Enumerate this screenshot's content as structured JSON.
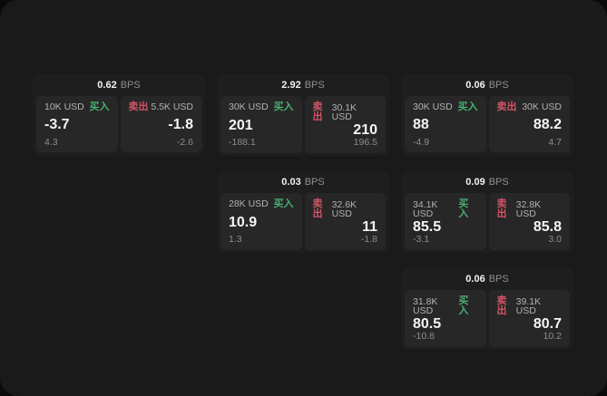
{
  "labels": {
    "buy": "买入",
    "sell": "卖出",
    "bps_unit": "BPS"
  },
  "colors": {
    "buy": "#4cae70",
    "sell": "#d25566",
    "page_background": "#1a1a1b",
    "outer_background": "#0a0a0b",
    "card_background": "#1e1e1f",
    "panel_background": "#272728"
  },
  "cards": [
    {
      "bps": "0.62",
      "buy": {
        "size": "10K USD",
        "value": "-3.7",
        "change": "4.3"
      },
      "sell": {
        "size": "5.5K USD",
        "value": "-1.8",
        "change": "-2.6"
      }
    },
    {
      "bps": "2.92",
      "buy": {
        "size": "30K USD",
        "value": "201",
        "change": "-188.1"
      },
      "sell": {
        "size": "30.1K USD",
        "value": "210",
        "change": "196.5"
      }
    },
    {
      "bps": "0.06",
      "buy": {
        "size": "30K USD",
        "value": "88",
        "change": "-4.9"
      },
      "sell": {
        "size": "30K USD",
        "value": "88.2",
        "change": "4.7"
      }
    },
    {
      "bps": "0.03",
      "buy": {
        "size": "28K USD",
        "value": "10.9",
        "change": "1.3"
      },
      "sell": {
        "size": "32.6K USD",
        "value": "11",
        "change": "-1.8"
      }
    },
    {
      "bps": "0.09",
      "buy": {
        "size": "34.1K USD",
        "value": "85.5",
        "change": "-3.1"
      },
      "sell": {
        "size": "32.8K USD",
        "value": "85.8",
        "change": "3.0"
      }
    },
    {
      "bps": "0.06",
      "buy": {
        "size": "31.8K USD",
        "value": "80.5",
        "change": "-10.8"
      },
      "sell": {
        "size": "39.1K USD",
        "value": "80.7",
        "change": "10.2"
      }
    }
  ]
}
